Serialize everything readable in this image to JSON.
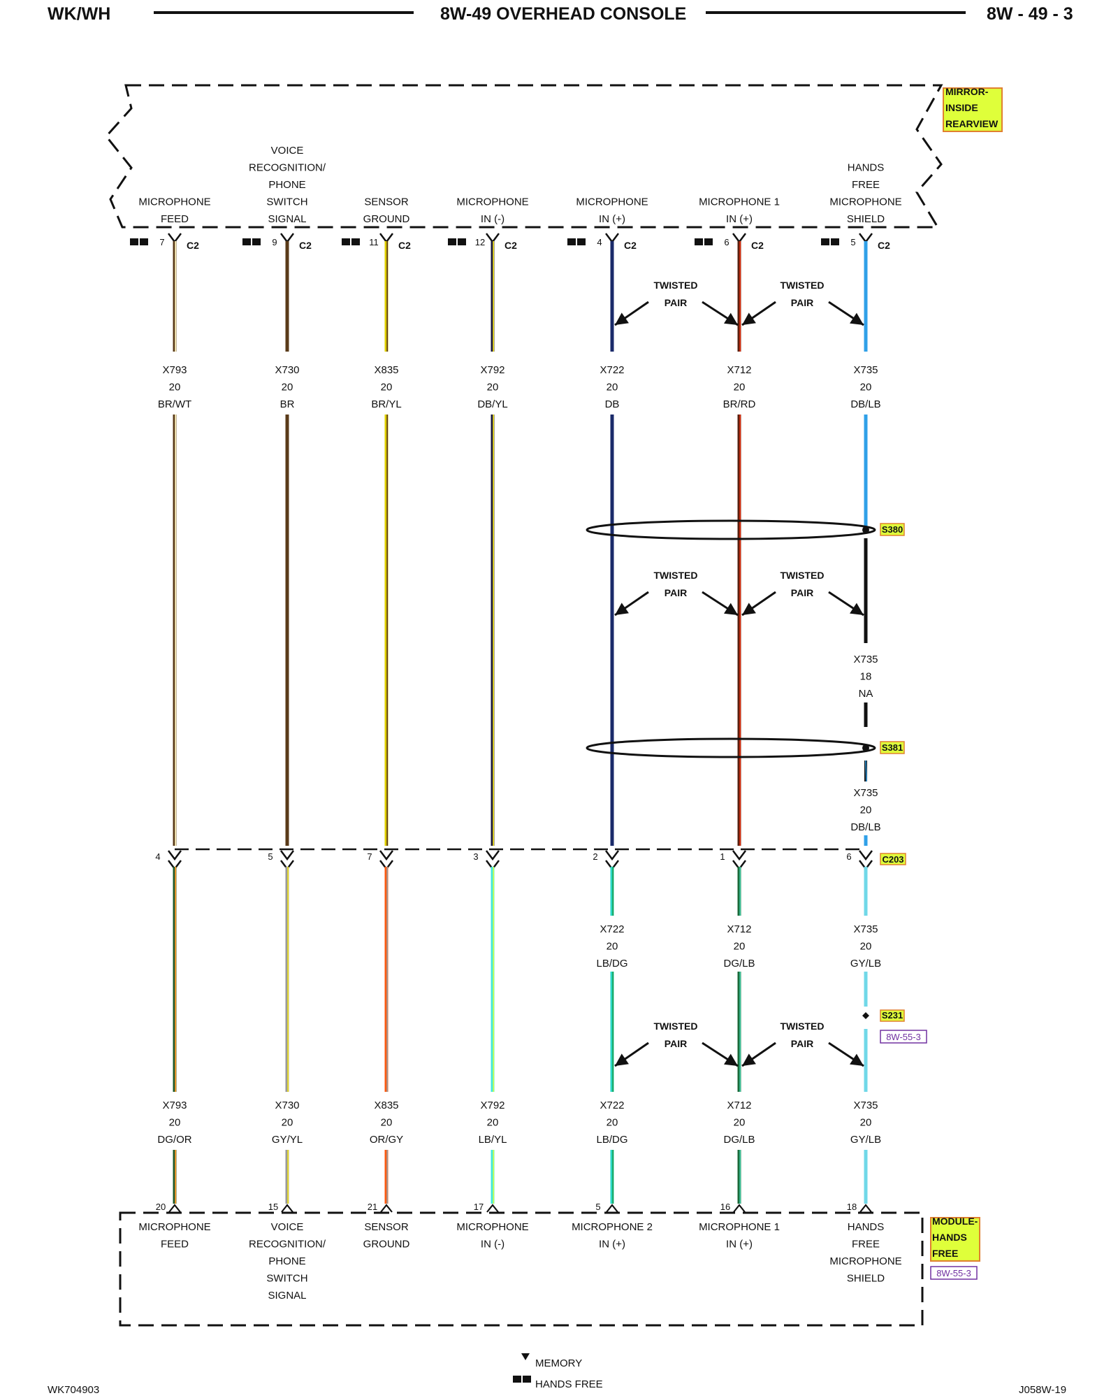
{
  "header": {
    "left": "WK/WH",
    "title": "8W-49 OVERHEAD CONSOLE",
    "right": "8W - 49 - 3"
  },
  "top_component": {
    "name_lines": [
      "MIRROR-",
      "INSIDE",
      "REARVIEW"
    ],
    "color": "#dfff3a"
  },
  "bottom_component": {
    "name_lines": [
      "MODULE-",
      "HANDS",
      "FREE"
    ],
    "ref": "8W-55-3",
    "color": "#dfff3a"
  },
  "connector_top": "C2",
  "connector_mid": "C203",
  "circuits": [
    {
      "id": "mic-feed",
      "top_label": [
        "MICROPHONE",
        "FEED"
      ],
      "pin_top": "7",
      "top_wire": [
        "X793",
        "20",
        "BR/WT"
      ],
      "c203_pin": "4",
      "bottom_wire": [
        "X793",
        "20",
        "DG/OR"
      ],
      "pin_bottom": "20",
      "bottom_label": [
        "MICROPHONE",
        "FEED"
      ],
      "color_top": [
        "#5a3b1a",
        "#fff4c0"
      ],
      "color_bottom": [
        "#1f5a2a",
        "#ff9a2a"
      ]
    },
    {
      "id": "voice-rec",
      "top_label": [
        "VOICE",
        "RECOGNITION/",
        "PHONE",
        "SWITCH",
        "SIGNAL"
      ],
      "pin_top": "9",
      "top_wire": [
        "X730",
        "20",
        "BR"
      ],
      "c203_pin": "5",
      "bottom_wire": [
        "X730",
        "20",
        "GY/YL"
      ],
      "pin_bottom": "15",
      "bottom_label": [
        "VOICE",
        "RECOGNITION/",
        "PHONE",
        "SWITCH",
        "SIGNAL"
      ],
      "color_top": [
        "#5a3b1a",
        null
      ],
      "color_bottom": [
        "#9a9a9a",
        "#f0e020"
      ]
    },
    {
      "id": "sensor-gnd",
      "top_label": [
        "SENSOR",
        "GROUND"
      ],
      "pin_top": "11",
      "top_wire": [
        "X835",
        "20",
        "BR/YL"
      ],
      "c203_pin": "7",
      "bottom_wire": [
        "X835",
        "20",
        "OR/GY"
      ],
      "pin_bottom": "21",
      "bottom_label": [
        "SENSOR",
        "GROUND"
      ],
      "color_top": [
        "#e0d000",
        "#5a3b1a"
      ],
      "color_bottom": [
        "#ff5a10",
        "#999999"
      ]
    },
    {
      "id": "mic-in-neg",
      "top_label": [
        "MICROPHONE",
        "IN (-)"
      ],
      "pin_top": "12",
      "top_wire": [
        "X792",
        "20",
        "DB/YL"
      ],
      "c203_pin": "3",
      "bottom_wire": [
        "X792",
        "20",
        "LB/YL"
      ],
      "pin_bottom": "17",
      "bottom_label": [
        "MICROPHONE",
        "IN (-)"
      ],
      "color_top": [
        "#1a1a40",
        "#f0e020"
      ],
      "color_bottom": [
        "#40e8e0",
        "#c8ff50"
      ]
    },
    {
      "id": "mic-in-pos",
      "top_label": [
        "MICROPHONE",
        "IN (+)"
      ],
      "pin_top": "4",
      "top_wire": [
        "X722",
        "20",
        "DB"
      ],
      "c203_pin": "2",
      "bottom_wire": [
        "X722",
        "20",
        "LB/DG"
      ],
      "pin_bottom": "5",
      "bottom_label": [
        "MICROPHONE 2",
        "IN (+)"
      ],
      "color_top": [
        "#1a2a6a",
        null
      ],
      "color_bottom": [
        "#2ad8c8",
        "#1aa050"
      ]
    },
    {
      "id": "mic1-in-pos",
      "top_label": [
        "MICROPHONE 1",
        "IN (+)"
      ],
      "pin_top": "6",
      "top_wire": [
        "X712",
        "20",
        "BR/RD"
      ],
      "c203_pin": "1",
      "bottom_wire": [
        "X712",
        "20",
        "DG/LB"
      ],
      "pin_bottom": "16",
      "bottom_label": [
        "MICROPHONE 1",
        "IN (+)"
      ],
      "color_top": [
        "#5a2010",
        "#e03010"
      ],
      "color_bottom": [
        "#1a6a3a",
        "#40c8a0"
      ]
    },
    {
      "id": "hf-shield",
      "top_label": [
        "HANDS",
        "FREE",
        "MICROPHONE",
        "SHIELD"
      ],
      "pin_top": "5",
      "top_wire": [
        "X735",
        "20",
        "DB/LB"
      ],
      "c203_pin": "6",
      "bottom_wire": [
        "X735",
        "20",
        "GY/LB"
      ],
      "pin_bottom": "18",
      "bottom_label": [
        "HANDS",
        "FREE",
        "MICROPHONE",
        "SHIELD"
      ],
      "color_top": [
        "#30a0e8",
        null
      ],
      "color_bottom": [
        "#70d8e8",
        null
      ]
    }
  ],
  "shield_segments": {
    "mid_wire": [
      "X735",
      "18",
      "NA"
    ],
    "pre_c203_wire": [
      "X735",
      "20",
      "DB/LB"
    ],
    "splice1": "S380",
    "splice2": "S381",
    "splice3": "S231",
    "splice3_ref": "8W-55-3"
  },
  "twisted_pair_label": [
    "TWISTED",
    "PAIR"
  ],
  "legend": {
    "memory": "MEMORY",
    "hands_free": "HANDS FREE"
  },
  "footer": {
    "left": "WK704903",
    "right": "J058W-19"
  }
}
